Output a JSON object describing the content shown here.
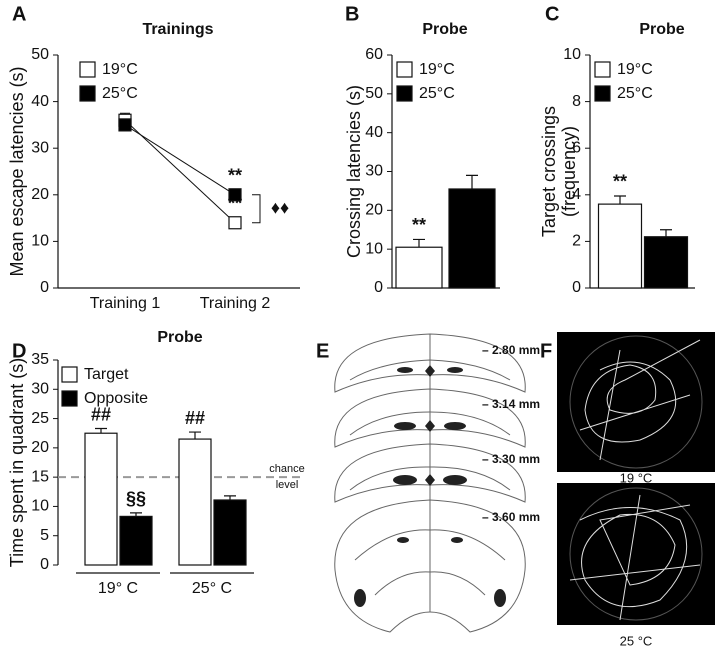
{
  "chart_data": [
    {
      "type": "line",
      "label": "A",
      "title": "Trainings",
      "ylabel": "Mean escape latencies (s)",
      "categories": [
        "Training 1",
        "Training 2"
      ],
      "series": [
        {
          "name": "19°C",
          "color": "#ffffff",
          "values": [
            36,
            14
          ],
          "errors": [
            1.5,
            0.8
          ],
          "significance": [
            null,
            "**"
          ]
        },
        {
          "name": "25°C",
          "color": "#000000",
          "values": [
            35,
            20
          ],
          "errors": [
            1.2,
            1.2
          ],
          "significance": [
            null,
            "**"
          ]
        }
      ],
      "annotations": [
        "♦♦"
      ],
      "ylim": [
        0,
        50
      ],
      "yticks": [
        0,
        10,
        20,
        30,
        40,
        50
      ]
    },
    {
      "type": "bar",
      "label": "B",
      "title": "Probe",
      "ylabel": "Crossing latencies (s)",
      "categories": [
        null
      ],
      "series": [
        {
          "name": "19°C",
          "color": "#ffffff",
          "values": [
            10.5
          ],
          "errors": [
            2
          ],
          "significance": [
            "**"
          ]
        },
        {
          "name": "25°C",
          "color": "#000000",
          "values": [
            25.5
          ],
          "errors": [
            3.5
          ],
          "significance": [
            null
          ]
        }
      ],
      "ylim": [
        0,
        60
      ],
      "yticks": [
        0,
        10,
        20,
        30,
        40,
        50,
        60
      ]
    },
    {
      "type": "bar",
      "label": "C",
      "title": "Probe",
      "ylabel": [
        "Target crossings",
        "(frequency)"
      ],
      "categories": [
        null
      ],
      "series": [
        {
          "name": "19°C",
          "color": "#ffffff",
          "values": [
            3.6
          ],
          "errors": [
            0.35
          ],
          "significance": [
            "**"
          ]
        },
        {
          "name": "25°C",
          "color": "#000000",
          "values": [
            2.2
          ],
          "errors": [
            0.3
          ],
          "significance": [
            null
          ]
        }
      ],
      "ylim": [
        0,
        10
      ],
      "yticks": [
        0,
        2,
        4,
        6,
        8,
        10
      ]
    },
    {
      "type": "bar",
      "label": "D",
      "title": "Probe",
      "ylabel": "Time spent in quadrant (s)",
      "categories": [
        "19° C",
        "25° C"
      ],
      "series": [
        {
          "name": "Target",
          "color": "#ffffff",
          "values": [
            22.5,
            21.5
          ],
          "errors": [
            0.8,
            1.2
          ],
          "significance": [
            "##",
            "##"
          ]
        },
        {
          "name": "Opposite",
          "color": "#000000",
          "values": [
            8.3,
            11.1
          ],
          "errors": [
            0.6,
            0.7
          ],
          "significance": [
            "§§",
            null
          ]
        }
      ],
      "hline": 15,
      "hline_label": [
        "chance",
        "level"
      ],
      "ylim": [
        0,
        35
      ],
      "yticks": [
        0,
        5,
        10,
        15,
        20,
        25,
        30,
        35
      ]
    }
  ],
  "panel_e": {
    "label": "E",
    "levels": [
      "– 2.80 mm",
      "– 3.14 mm",
      "– 3.30 mm",
      "– 3.60 mm"
    ]
  },
  "panel_f": {
    "label": "F",
    "groups": [
      "19 °C",
      "25 °C"
    ]
  }
}
